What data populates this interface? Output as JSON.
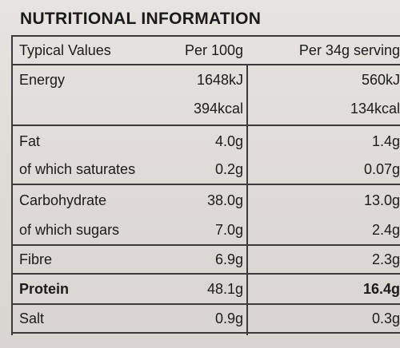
{
  "title": "NUTRITIONAL INFORMATION",
  "header": {
    "col0": "Typical Values",
    "col1": "Per 100g",
    "col2": "Per 34g serving"
  },
  "rows": [
    {
      "label": "Energy",
      "per100": "1648kJ",
      "serving": "560kJ"
    },
    {
      "label": "",
      "per100": "394kcal",
      "serving": "134kcal"
    },
    {
      "label": "Fat",
      "per100": "4.0g",
      "serving": "1.4g"
    },
    {
      "label": "of which saturates",
      "per100": "0.2g",
      "serving": "0.07g"
    },
    {
      "label": "Carbohydrate",
      "per100": "38.0g",
      "serving": "13.0g"
    },
    {
      "label": "of which sugars",
      "per100": "7.0g",
      "serving": "2.4g"
    },
    {
      "label": "Fibre",
      "per100": "6.9g",
      "serving": "2.3g"
    },
    {
      "label": "Protein",
      "per100": "48.1g",
      "serving": "16.4g"
    },
    {
      "label": "Salt",
      "per100": "0.9g",
      "serving": "0.3g"
    }
  ]
}
